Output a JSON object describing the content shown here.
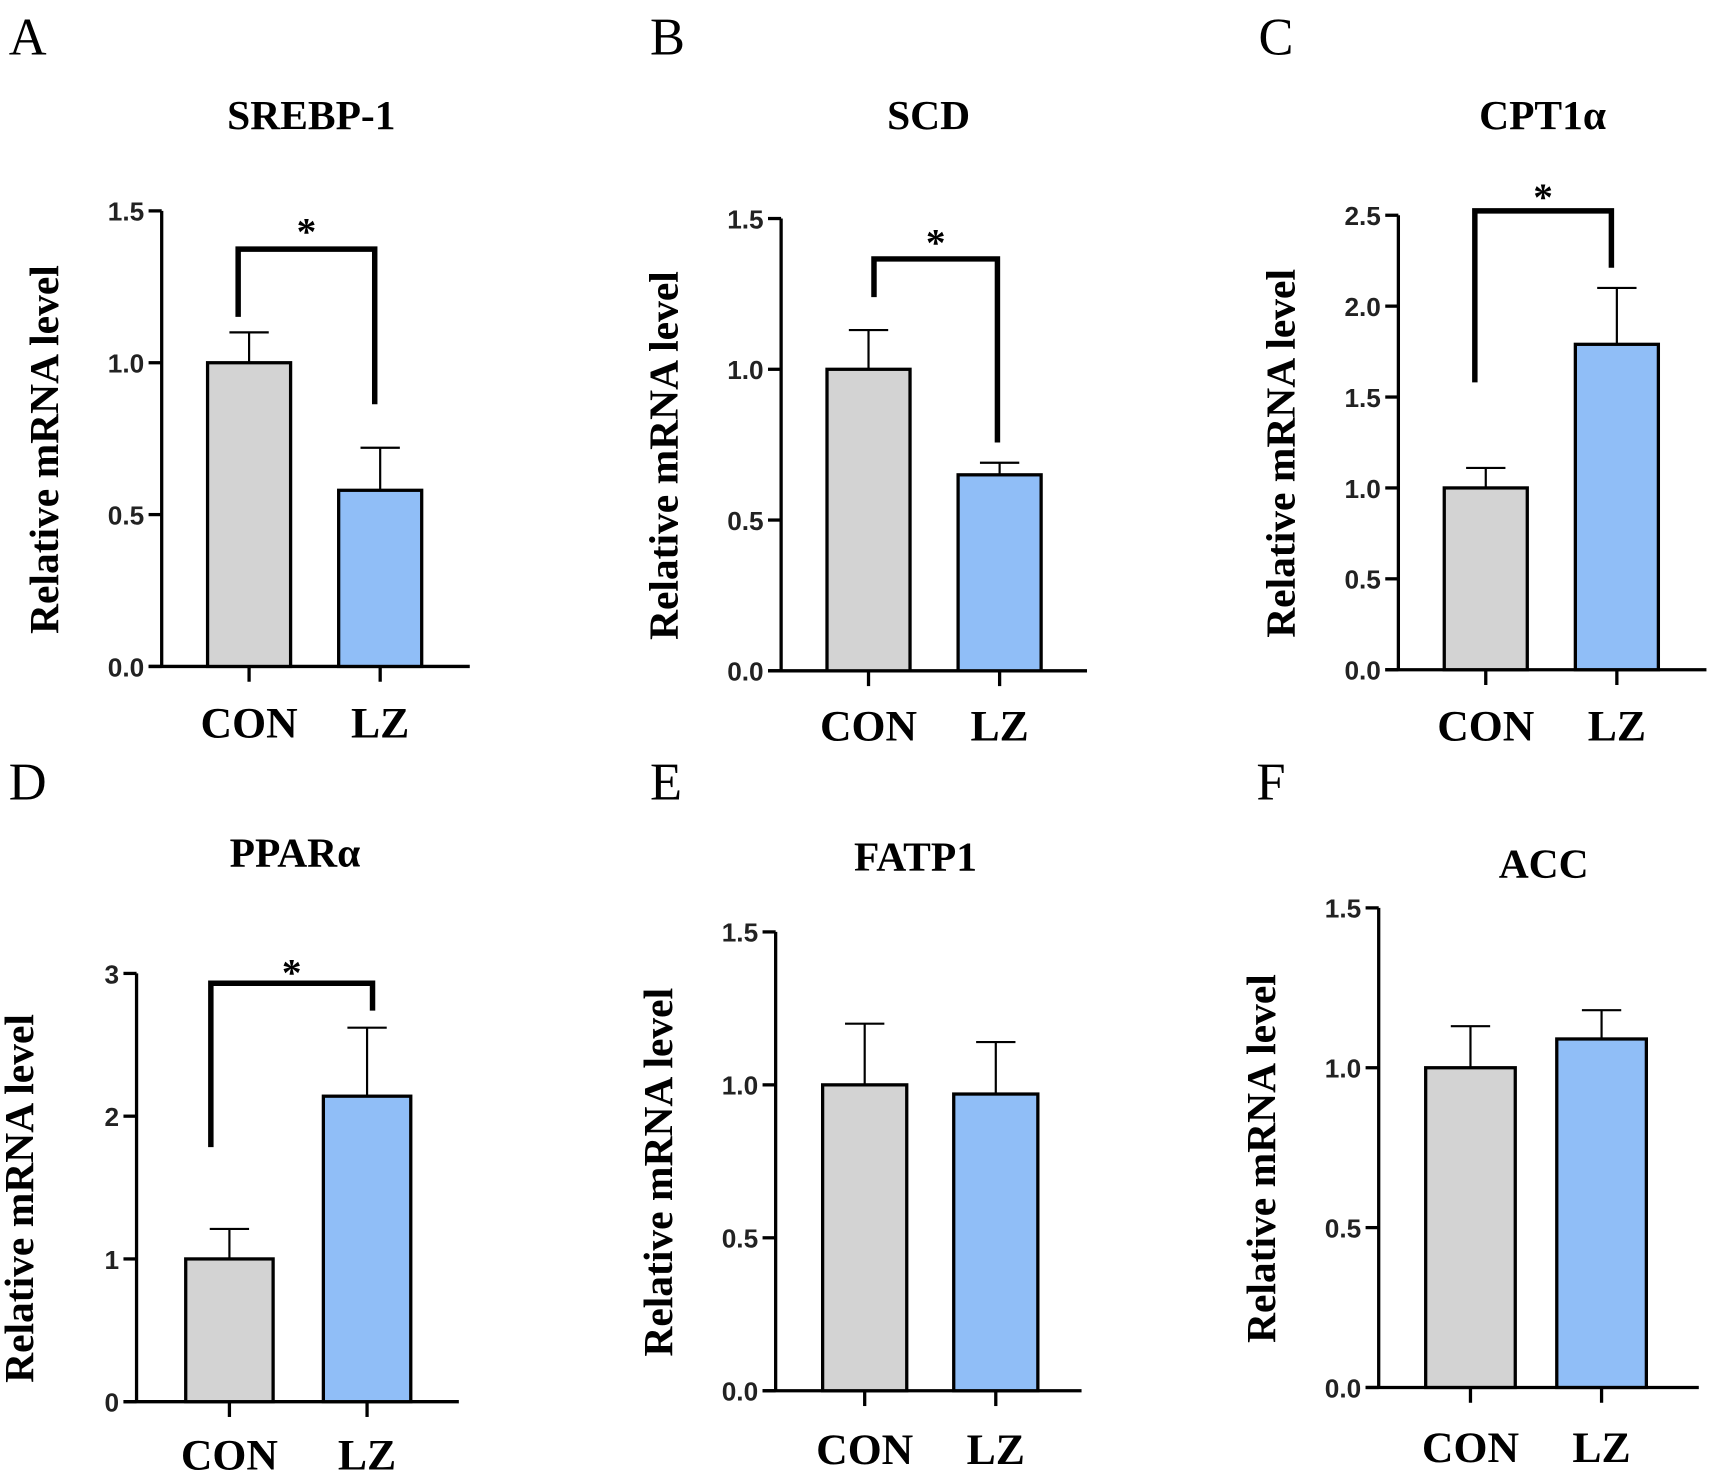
{
  "chart_data": [
    {
      "type": "bar",
      "panel": "A",
      "title": "SREBP-1",
      "ylabel": "Relative mRNA level",
      "categories": [
        "CON",
        "LZ"
      ],
      "values": [
        1.0,
        0.58
      ],
      "errors": [
        0.1,
        0.14
      ],
      "ylim": [
        0,
        1.5
      ],
      "yticks": [
        "0.0",
        "0.5",
        "1.0",
        "1.5"
      ],
      "significance": "*",
      "colors": [
        "#d3d3d3",
        "#90bef7"
      ]
    },
    {
      "type": "bar",
      "panel": "B",
      "title": "SCD",
      "ylabel": "Relative mRNA level",
      "categories": [
        "CON",
        "LZ"
      ],
      "values": [
        1.0,
        0.65
      ],
      "errors": [
        0.13,
        0.04
      ],
      "ylim": [
        0,
        1.5
      ],
      "yticks": [
        "0.0",
        "0.5",
        "1.0",
        "1.5"
      ],
      "significance": "*",
      "colors": [
        "#d3d3d3",
        "#90bef7"
      ]
    },
    {
      "type": "bar",
      "panel": "C",
      "title": "CPT1α",
      "ylabel": "Relative mRNA level",
      "categories": [
        "CON",
        "LZ"
      ],
      "values": [
        1.0,
        1.79
      ],
      "errors": [
        0.11,
        0.31
      ],
      "ylim": [
        0,
        2.5
      ],
      "yticks": [
        "0.0",
        "0.5",
        "1.0",
        "1.5",
        "2.0",
        "2.5"
      ],
      "significance": "*",
      "colors": [
        "#d3d3d3",
        "#90bef7"
      ]
    },
    {
      "type": "bar",
      "panel": "D",
      "title": "PPARα",
      "ylabel": "Relative mRNA level",
      "categories": [
        "CON",
        "LZ"
      ],
      "values": [
        1.0,
        2.14
      ],
      "errors": [
        0.21,
        0.48
      ],
      "ylim": [
        0,
        3
      ],
      "yticks": [
        "0",
        "1",
        "2",
        "3"
      ],
      "significance": "*",
      "colors": [
        "#d3d3d3",
        "#90bef7"
      ]
    },
    {
      "type": "bar",
      "panel": "E",
      "title": "FATP1",
      "ylabel": "Relative mRNA level",
      "categories": [
        "CON",
        "LZ"
      ],
      "values": [
        1.0,
        0.97
      ],
      "errors": [
        0.2,
        0.17
      ],
      "ylim": [
        0,
        1.5
      ],
      "yticks": [
        "0.0",
        "0.5",
        "1.0",
        "1.5"
      ],
      "significance": "",
      "colors": [
        "#d3d3d3",
        "#90bef7"
      ]
    },
    {
      "type": "bar",
      "panel": "F",
      "title": "ACC",
      "ylabel": "Relative mRNA level",
      "categories": [
        "CON",
        "LZ"
      ],
      "values": [
        1.0,
        1.09
      ],
      "errors": [
        0.13,
        0.09
      ],
      "ylim": [
        0,
        1.5
      ],
      "yticks": [
        "0.0",
        "0.5",
        "1.0",
        "1.5"
      ],
      "significance": "",
      "colors": [
        "#d3d3d3",
        "#90bef7"
      ]
    }
  ]
}
